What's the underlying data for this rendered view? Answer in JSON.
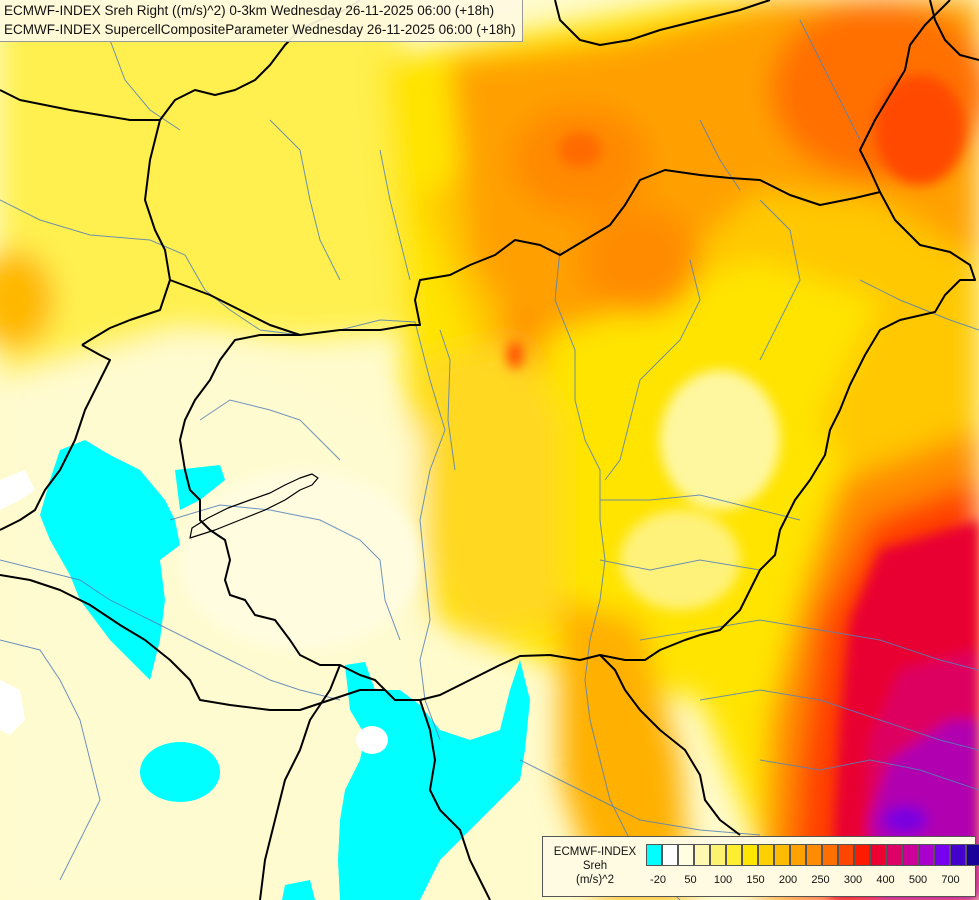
{
  "header": {
    "line1": "ECMWF-INDEX Sreh Right ((m/s)^2) 0-3km Wednesday 26-11-2025 06:00 (+18h)",
    "line2": "ECMWF-INDEX SupercellCompositeParameter Wednesday 26-11-2025 06:00 (+18h)"
  },
  "legend": {
    "source": "ECMWF-INDEX",
    "variable": "Sreh",
    "unit": "(m/s)^2",
    "colors": [
      "#00ffff",
      "#ffffff",
      "#fffee0",
      "#fff8b0",
      "#fff270",
      "#ffee30",
      "#ffe600",
      "#ffd000",
      "#ffbb00",
      "#ffa200",
      "#ff8c00",
      "#ff6e00",
      "#ff4600",
      "#ff1a00",
      "#ee0033",
      "#dd0066",
      "#cc0099",
      "#aa00cc",
      "#7700ee",
      "#4400cc",
      "#1a0099"
    ],
    "ticks": [
      "-20",
      "50",
      "100",
      "150",
      "200",
      "250",
      "300",
      "400",
      "500",
      "700"
    ]
  },
  "colors": {
    "border": "#000000",
    "river": "#5580b8"
  }
}
